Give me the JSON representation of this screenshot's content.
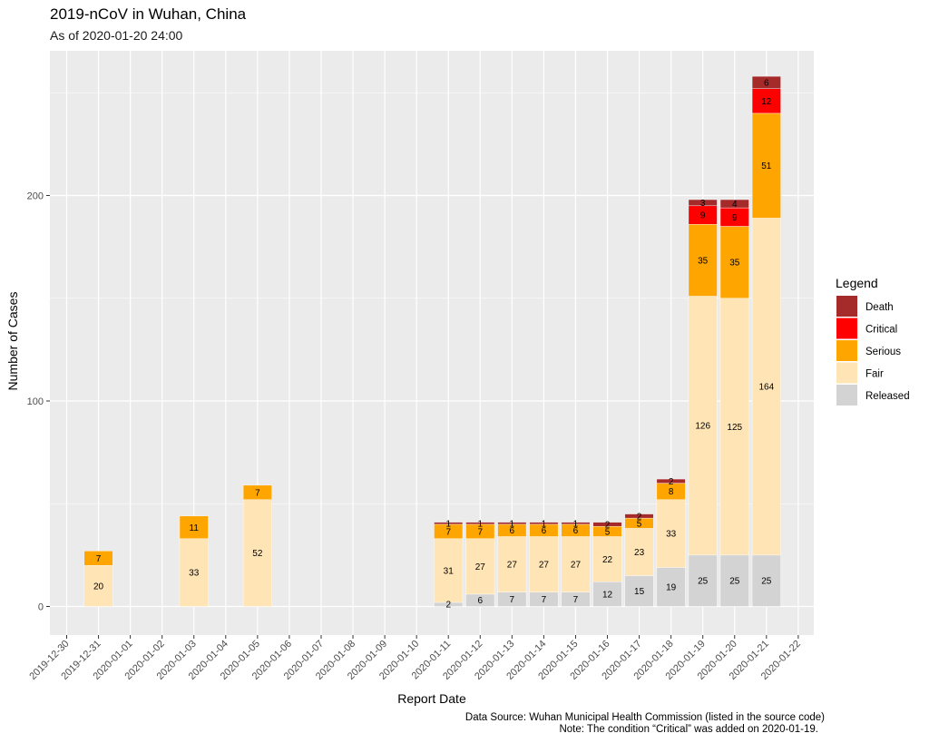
{
  "title": "2019-nCoV in Wuhan, China",
  "subtitle": "As of 2020-01-20 24:00",
  "caption_lines": [
    "Data Source: Wuhan Municipal Health Commission (listed in the source code)",
    "Note: The condition “Critical” was added on 2020-01-19."
  ],
  "colors": {
    "panel": "#ebebeb",
    "grid_major": "#ffffff",
    "Death": "#a52a2a",
    "Critical": "#ff0000",
    "Serious": "#ffa500",
    "Fair": "#ffe4b5",
    "Released": "#d3d3d3"
  },
  "chart_data": {
    "type": "bar",
    "stacked": true,
    "xlabel": "Report Date",
    "ylabel": "Number of Cases",
    "ylim": [
      -11,
      260
    ],
    "y_ticks": [
      0,
      100,
      200
    ],
    "grid": true,
    "x_ticks": [
      "2019-12-30",
      "2019-12-31",
      "2020-01-01",
      "2020-01-02",
      "2020-01-03",
      "2020-01-04",
      "2020-01-05",
      "2020-01-06",
      "2020-01-07",
      "2020-01-08",
      "2020-01-09",
      "2020-01-10",
      "2020-01-11",
      "2020-01-12",
      "2020-01-13",
      "2020-01-14",
      "2020-01-15",
      "2020-01-16",
      "2020-01-17",
      "2020-01-18",
      "2020-01-19",
      "2020-01-20",
      "2020-01-21",
      "2020-01-22"
    ],
    "legend": {
      "title": "Legend",
      "position": "right",
      "entries": [
        "Death",
        "Critical",
        "Serious",
        "Fair",
        "Released"
      ]
    },
    "stack_order": [
      "Released",
      "Fair",
      "Serious",
      "Critical",
      "Death"
    ],
    "bars": [
      {
        "date": "2019-12-31",
        "Released": 0,
        "Fair": 20,
        "Serious": 7,
        "Critical": 0,
        "Death": 0
      },
      {
        "date": "2020-01-03",
        "Released": 0,
        "Fair": 33,
        "Serious": 11,
        "Critical": 0,
        "Death": 0
      },
      {
        "date": "2020-01-05",
        "Released": 0,
        "Fair": 52,
        "Serious": 7,
        "Critical": 0,
        "Death": 0
      },
      {
        "date": "2020-01-11",
        "Released": 2,
        "Fair": 31,
        "Serious": 7,
        "Critical": 0,
        "Death": 1
      },
      {
        "date": "2020-01-12",
        "Released": 6,
        "Fair": 27,
        "Serious": 7,
        "Critical": 0,
        "Death": 1
      },
      {
        "date": "2020-01-13",
        "Released": 7,
        "Fair": 27,
        "Serious": 6,
        "Critical": 0,
        "Death": 1
      },
      {
        "date": "2020-01-14",
        "Released": 7,
        "Fair": 27,
        "Serious": 6,
        "Critical": 0,
        "Death": 1
      },
      {
        "date": "2020-01-15",
        "Released": 7,
        "Fair": 27,
        "Serious": 6,
        "Critical": 0,
        "Death": 1
      },
      {
        "date": "2020-01-16",
        "Released": 12,
        "Fair": 22,
        "Serious": 5,
        "Critical": 0,
        "Death": 2
      },
      {
        "date": "2020-01-17",
        "Released": 15,
        "Fair": 23,
        "Serious": 5,
        "Critical": 0,
        "Death": 2
      },
      {
        "date": "2020-01-18",
        "Released": 19,
        "Fair": 33,
        "Serious": 8,
        "Critical": 0,
        "Death": 2
      },
      {
        "date": "2020-01-19",
        "Released": 25,
        "Fair": 126,
        "Serious": 35,
        "Critical": 9,
        "Death": 3
      },
      {
        "date": "2020-01-20",
        "Released": 25,
        "Fair": 125,
        "Serious": 35,
        "Critical": 9,
        "Death": 4
      },
      {
        "date": "2020-01-21",
        "Released": 25,
        "Fair": 164,
        "Serious": 51,
        "Critical": 12,
        "Death": 6
      }
    ]
  }
}
